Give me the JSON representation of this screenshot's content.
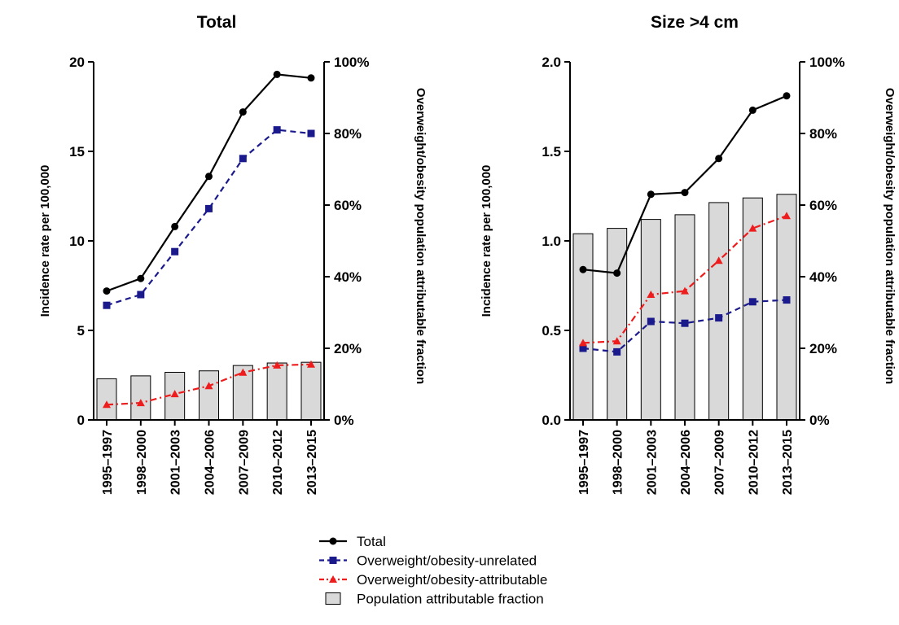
{
  "colors": {
    "total": "#000000",
    "unrelated": "#1a1a8c",
    "attributable": "#ee1c1c",
    "bar_fill": "#d9d9d9",
    "bar_stroke": "#000000"
  },
  "legend": {
    "entries": [
      {
        "label": "Total",
        "style": "solid-line-circle"
      },
      {
        "label": "Overweight/obesity-unrelated",
        "style": "dashed-line-square"
      },
      {
        "label": "Overweight/obesity-attributable",
        "style": "dashdot-line-triangle"
      },
      {
        "label": "Population attributable fraction",
        "style": "bar"
      }
    ],
    "position": "bottom-center"
  },
  "chart_data": [
    {
      "type": "line",
      "title": "Total",
      "categories": [
        "1995–1997",
        "1998–2000",
        "2001–2003",
        "2004–2006",
        "2007–2009",
        "2010–2012",
        "2013–2015"
      ],
      "ylabel": "Incidence rate per 100,000",
      "ylim": [
        0,
        20
      ],
      "yticks": [
        "0",
        "5",
        "10",
        "15",
        "20"
      ],
      "y2label": "Overweight/obesity population attributable fraction",
      "y2lim": [
        0,
        100
      ],
      "y2ticks": [
        "0%",
        "20%",
        "40%",
        "60%",
        "80%",
        "100%"
      ],
      "series": [
        {
          "name": "Total",
          "axis": "left",
          "style": "solid-circle",
          "values": [
            7.2,
            7.9,
            10.8,
            13.6,
            17.2,
            19.3,
            19.1
          ]
        },
        {
          "name": "Overweight/obesity-unrelated",
          "axis": "left",
          "style": "dashed-square",
          "values": [
            6.4,
            7.0,
            9.4,
            11.8,
            14.6,
            16.2,
            16.0
          ]
        },
        {
          "name": "Overweight/obesity-attributable",
          "axis": "left",
          "style": "dashdot-triangle",
          "values": [
            0.85,
            0.95,
            1.45,
            1.9,
            2.65,
            3.05,
            3.1
          ]
        },
        {
          "name": "Population attributable fraction",
          "axis": "right",
          "style": "bar",
          "values": [
            11.5,
            12.3,
            13.3,
            13.7,
            15.2,
            15.9,
            16.1
          ]
        }
      ]
    },
    {
      "type": "line",
      "title": "Size >4 cm",
      "categories": [
        "1995–1997",
        "1998–2000",
        "2001–2003",
        "2004–2006",
        "2007–2009",
        "2010–2012",
        "2013–2015"
      ],
      "ylabel": "Incidence rate per 100,000",
      "ylim": [
        0,
        2
      ],
      "yticks": [
        "0.0",
        "0.5",
        "1.0",
        "1.5",
        "2.0"
      ],
      "y2label": "Overweight/obesity population attributable fraction",
      "y2lim": [
        0,
        100
      ],
      "y2ticks": [
        "0%",
        "20%",
        "40%",
        "60%",
        "80%",
        "100%"
      ],
      "series": [
        {
          "name": "Total",
          "axis": "left",
          "style": "solid-circle",
          "values": [
            0.84,
            0.82,
            1.26,
            1.27,
            1.46,
            1.73,
            1.81
          ]
        },
        {
          "name": "Overweight/obesity-unrelated",
          "axis": "left",
          "style": "dashed-square",
          "values": [
            0.4,
            0.38,
            0.55,
            0.54,
            0.57,
            0.66,
            0.67
          ]
        },
        {
          "name": "Overweight/obesity-attributable",
          "axis": "left",
          "style": "dashdot-triangle",
          "values": [
            0.43,
            0.44,
            0.7,
            0.72,
            0.89,
            1.07,
            1.14
          ]
        },
        {
          "name": "Population attributable fraction",
          "axis": "right",
          "style": "bar",
          "values": [
            52,
            53.5,
            56,
            57.3,
            60.7,
            62,
            63
          ]
        }
      ]
    }
  ]
}
